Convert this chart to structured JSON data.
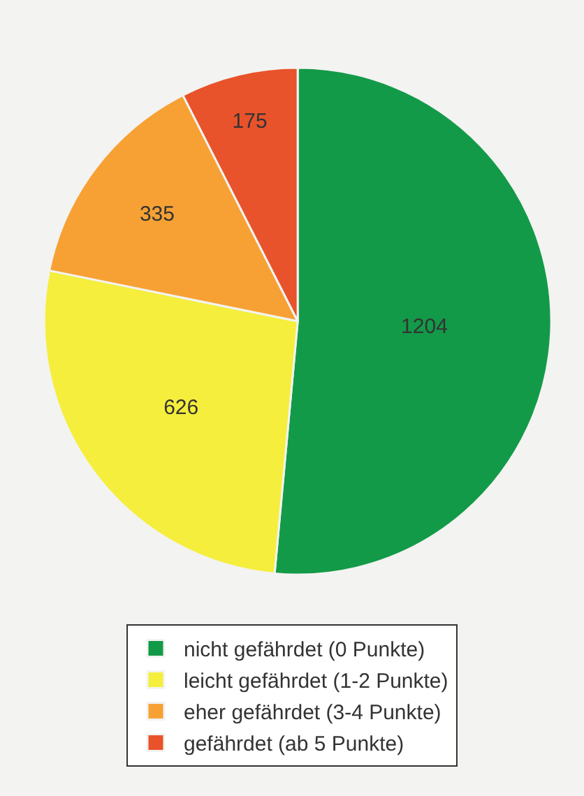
{
  "chart_data": {
    "type": "pie",
    "categories": [
      "nicht gefährdet (0 Punkte)",
      "leicht gefährdet (1-2 Punkte)",
      "eher gefährdet (3-4 Punkte)",
      "gefährdet (ab 5 Punkte)"
    ],
    "values": [
      1204,
      626,
      335,
      175
    ],
    "colors": [
      "#139a48",
      "#f5ee3c",
      "#f7a134",
      "#e8532b"
    ],
    "data_labels": true,
    "legend": "bottom"
  }
}
